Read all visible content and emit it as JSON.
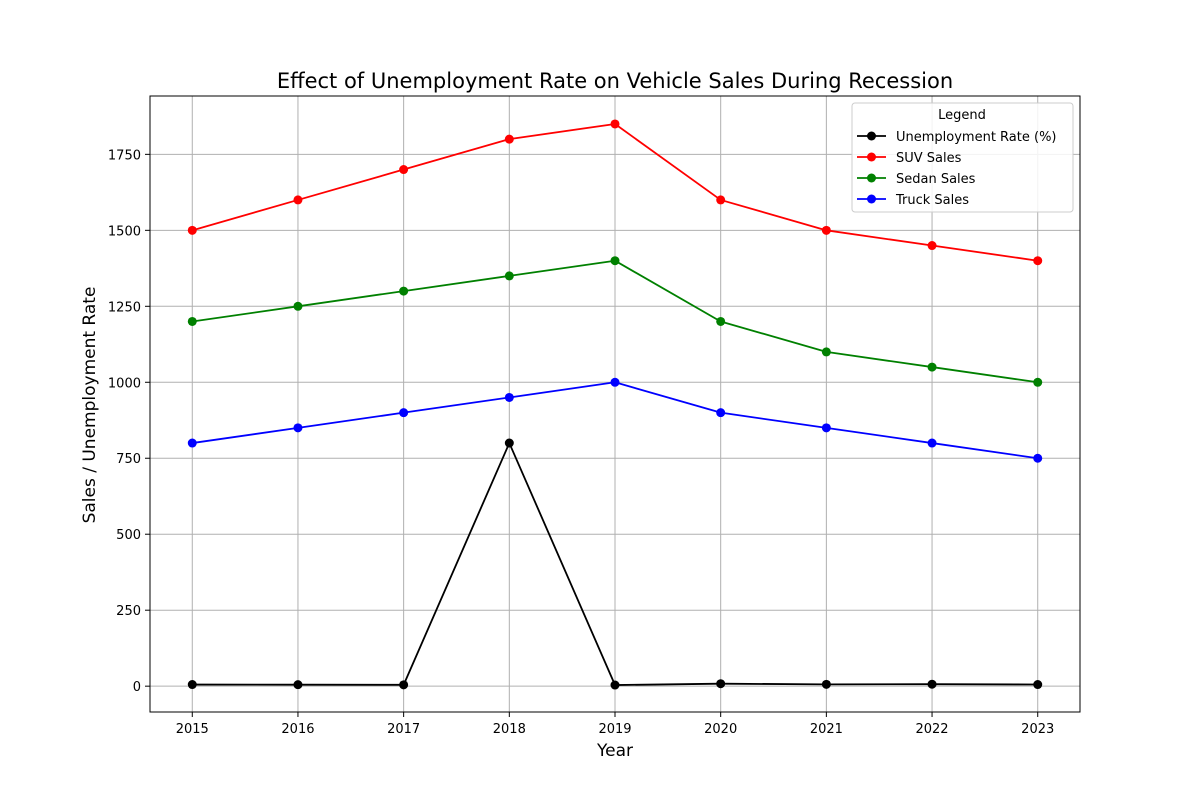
{
  "chart_data": {
    "type": "line",
    "title": "Effect of Unemployment Rate on Vehicle Sales During Recession",
    "xlabel": "Year",
    "ylabel": "Sales / Unemployment Rate",
    "x": [
      2015,
      2016,
      2017,
      2018,
      2019,
      2020,
      2021,
      2022,
      2023
    ],
    "x_tick_labels": [
      "2015",
      "2016",
      "2017",
      "2018",
      "2019",
      "2020",
      "2021",
      "2022",
      "2023"
    ],
    "y_ticks": [
      0,
      250,
      500,
      750,
      1000,
      1250,
      1500,
      1750
    ],
    "y_tick_labels": [
      "0",
      "250",
      "500",
      "750",
      "1000",
      "1250",
      "1500",
      "1750"
    ],
    "xlim": [
      2014.6,
      2023.4
    ],
    "ylim": [
      -85,
      1942
    ],
    "grid": true,
    "legend": {
      "title": "Legend",
      "placement": "top-right"
    },
    "series": [
      {
        "name": "Unemployment Rate (%)",
        "color": "#000000",
        "values": [
          5.3,
          4.9,
          4.4,
          800,
          3.7,
          8.1,
          6.0,
          6.5,
          5.4
        ]
      },
      {
        "name": "SUV Sales",
        "color": "#ff0000",
        "values": [
          1500,
          1600,
          1700,
          1800,
          1850,
          1600,
          1500,
          1450,
          1400
        ]
      },
      {
        "name": "Sedan Sales",
        "color": "#008000",
        "values": [
          1200,
          1250,
          1300,
          1350,
          1400,
          1200,
          1100,
          1050,
          1000
        ]
      },
      {
        "name": "Truck Sales",
        "color": "#0000ff",
        "values": [
          800,
          850,
          900,
          950,
          1000,
          900,
          850,
          800,
          750
        ]
      }
    ]
  }
}
